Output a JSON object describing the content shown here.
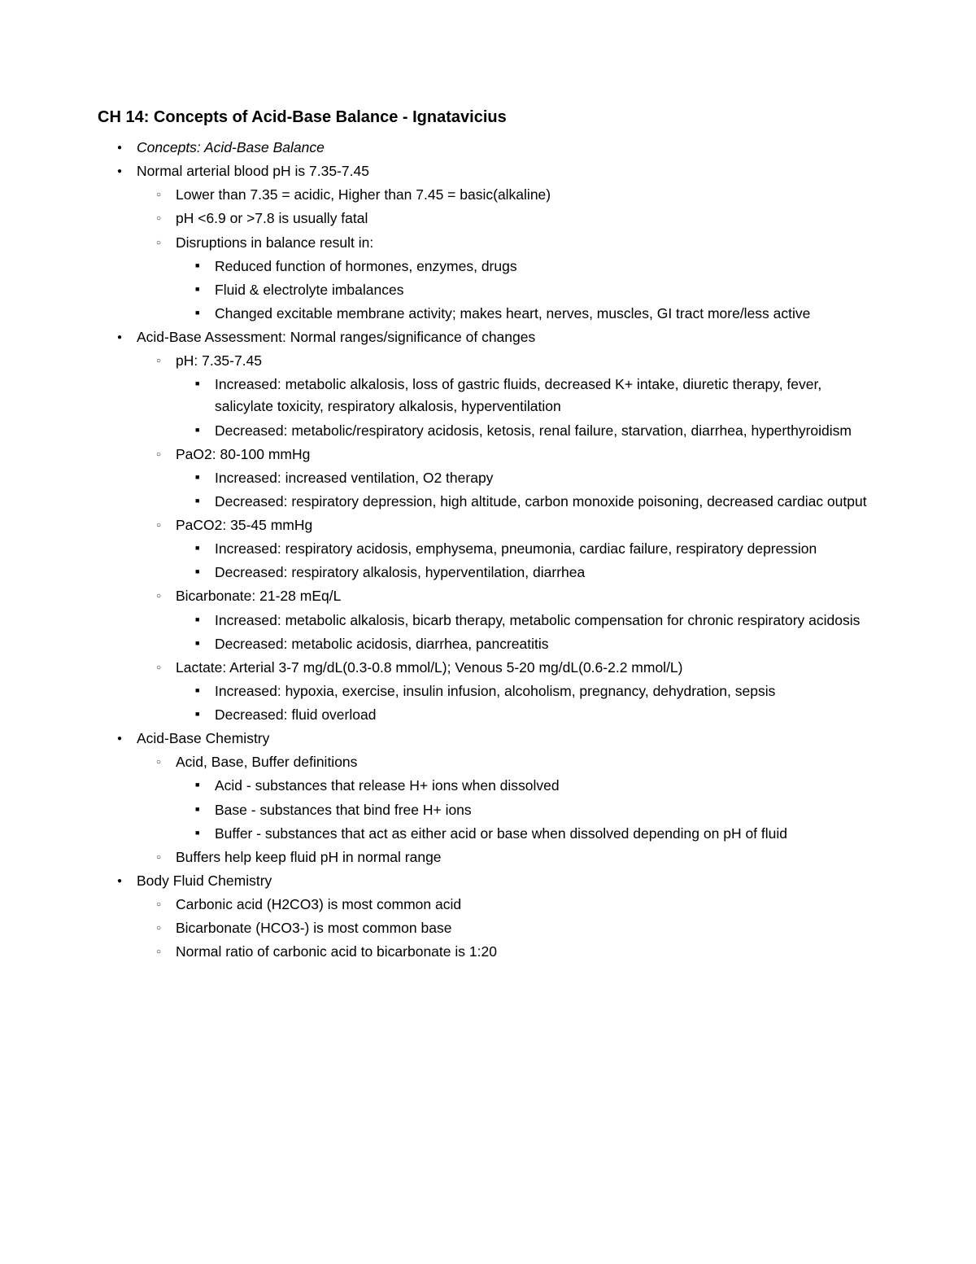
{
  "title": "CH 14: Concepts of Acid-Base Balance - Ignatavicius",
  "outline": [
    {
      "text": "Concepts: Acid-Base Balance",
      "italic": true
    },
    {
      "text": "Normal arterial blood pH is 7.35-7.45",
      "children": [
        {
          "text": "Lower than 7.35 = acidic, Higher than 7.45 = basic(alkaline)"
        },
        {
          "text": "pH <6.9 or >7.8 is usually fatal"
        },
        {
          "text": "Disruptions in balance result in:",
          "children": [
            {
              "text": "Reduced function of hormones, enzymes, drugs"
            },
            {
              "text": "Fluid & electrolyte imbalances"
            },
            {
              "text": "Changed excitable membrane activity; makes heart, nerves, muscles, GI tract more/less active"
            }
          ]
        }
      ]
    },
    {
      "text": "Acid-Base Assessment: Normal ranges/significance of changes",
      "children": [
        {
          "text": "pH: 7.35-7.45",
          "children": [
            {
              "text": "Increased: metabolic alkalosis, loss of gastric fluids, decreased K+ intake, diuretic therapy, fever, salicylate toxicity, respiratory alkalosis, hyperventilation"
            },
            {
              "text": "Decreased: metabolic/respiratory acidosis, ketosis, renal failure, starvation, diarrhea, hyperthyroidism"
            }
          ]
        },
        {
          "text": "PaO2: 80-100 mmHg",
          "children": [
            {
              "text": "Increased: increased ventilation, O2 therapy"
            },
            {
              "text": "Decreased: respiratory depression, high altitude, carbon monoxide poisoning, decreased cardiac output"
            }
          ]
        },
        {
          "text": "PaCO2: 35-45 mmHg",
          "children": [
            {
              "text": "Increased: respiratory acidosis, emphysema, pneumonia, cardiac failure, respiratory depression"
            },
            {
              "text": "Decreased: respiratory alkalosis, hyperventilation, diarrhea"
            }
          ]
        },
        {
          "text": "Bicarbonate: 21-28 mEq/L",
          "children": [
            {
              "text": "Increased: metabolic alkalosis, bicarb therapy, metabolic compensation for chronic respiratory acidosis"
            },
            {
              "text": "Decreased: metabolic acidosis, diarrhea, pancreatitis"
            }
          ]
        },
        {
          "text": "Lactate: Arterial 3-7 mg/dL(0.3-0.8 mmol/L); Venous 5-20 mg/dL(0.6-2.2 mmol/L)",
          "children": [
            {
              "text": "Increased: hypoxia, exercise, insulin infusion, alcoholism, pregnancy, dehydration, sepsis"
            },
            {
              "text": "Decreased: fluid overload"
            }
          ]
        }
      ]
    },
    {
      "text": "Acid-Base Chemistry",
      "children": [
        {
          "text": "Acid, Base, Buffer definitions",
          "children": [
            {
              "text": "Acid - substances that release H+ ions when dissolved"
            },
            {
              "text": "Base - substances that bind free H+ ions"
            },
            {
              "text": "Buffer - substances that act as either acid or base when dissolved depending on pH of fluid"
            }
          ]
        },
        {
          "text": "Buffers help keep fluid pH in normal range"
        }
      ]
    },
    {
      "text": "Body Fluid Chemistry",
      "children": [
        {
          "text": "Carbonic acid (H2CO3) is most common acid"
        },
        {
          "text": "Bicarbonate (HCO3-) is most common base"
        },
        {
          "text": "Normal ratio of carbonic acid to bicarbonate is 1:20"
        }
      ]
    }
  ]
}
